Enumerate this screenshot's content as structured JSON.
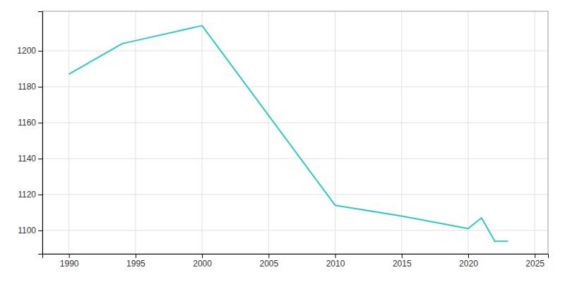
{
  "chart_data": {
    "type": "line",
    "x": [
      1990,
      1994,
      2000,
      2010,
      2015,
      2020,
      2021,
      2022,
      2023
    ],
    "values": [
      1187,
      1204,
      1214,
      1114,
      1108,
      1101,
      1107,
      1094,
      1094
    ],
    "color": "#2ec8c8",
    "xlim": [
      1988,
      2026
    ],
    "ylim": [
      1087,
      1222
    ],
    "xticks": [
      1990,
      1995,
      2000,
      2005,
      2010,
      2015,
      2020,
      2025
    ],
    "yticks": [
      1100,
      1120,
      1140,
      1160,
      1180,
      1200
    ],
    "grid": true
  }
}
